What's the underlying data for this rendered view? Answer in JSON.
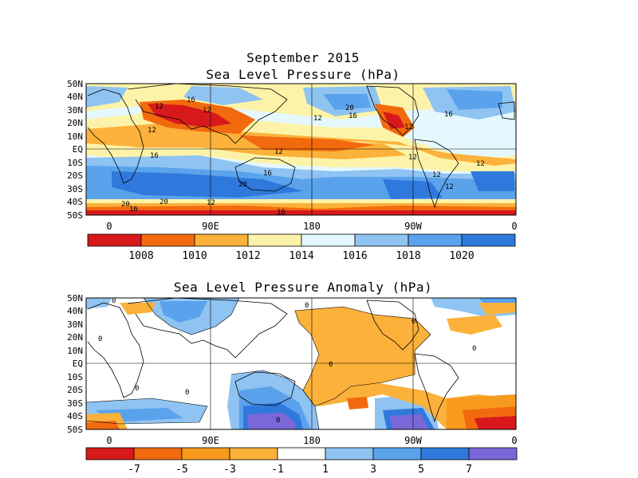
{
  "top_panel": {
    "title_line1": "September 2015",
    "title_line2": "Sea Level Pressure (hPa)",
    "lat_labels": [
      "50N",
      "40N",
      "30N",
      "20N",
      "10N",
      "EQ",
      "10S",
      "20S",
      "30S",
      "40S",
      "50S"
    ],
    "lon_labels": [
      "0",
      "90E",
      "180",
      "90W",
      "0"
    ],
    "contour_labels": [
      "16",
      "12",
      "12",
      "20",
      "16",
      "12",
      "12",
      "12",
      "12",
      "16",
      "12",
      "16",
      "20",
      "12",
      "12",
      "16",
      "20",
      "20",
      "16",
      "12",
      "16",
      "12"
    ],
    "colorbar": {
      "labels": [
        "1008",
        "1010",
        "1012",
        "1014",
        "1016",
        "1018",
        "1020"
      ],
      "colors": [
        "#d7191c",
        "#f26a0e",
        "#fbb13a",
        "#fdf3a8",
        "#e5f8ff",
        "#8fc3f2",
        "#5aa3ec",
        "#2f79dc"
      ]
    }
  },
  "bottom_panel": {
    "title": "Sea Level Pressure Anomaly (hPa)",
    "lat_labels": [
      "50N",
      "40N",
      "30N",
      "20N",
      "10N",
      "EQ",
      "10S",
      "20S",
      "30S",
      "40S",
      "50S"
    ],
    "lon_labels": [
      "0",
      "90E",
      "180",
      "90W",
      "0"
    ],
    "contour_labels": [
      "0",
      "0",
      "0",
      "0",
      "0",
      "0",
      "0",
      "0",
      "0"
    ],
    "colorbar": {
      "labels": [
        "-7",
        "-5",
        "-3",
        "-1",
        "1",
        "3",
        "5",
        "7"
      ],
      "colors": [
        "#d7191c",
        "#f26a0e",
        "#f89a1e",
        "#fbb13a",
        "#ffffff",
        "#8fc3f2",
        "#5aa3ec",
        "#2f79dc",
        "#7b68d8"
      ]
    }
  }
}
